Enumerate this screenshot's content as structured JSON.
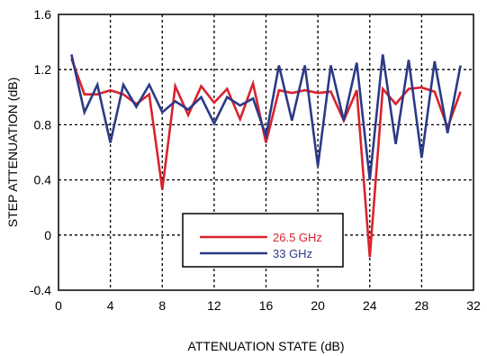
{
  "chart_data": {
    "type": "line",
    "xlabel": "ATTENUATION STATE (dB)",
    "ylabel": "STEP ATTENUATION (dB)",
    "xlim": [
      0,
      32
    ],
    "ylim": [
      -0.4,
      1.6
    ],
    "x_ticks": [
      "0",
      "4",
      "8",
      "12",
      "16",
      "20",
      "24",
      "28",
      "32"
    ],
    "y_ticks": [
      "-0.4",
      "0",
      "0.4",
      "0.8",
      "1.2",
      "1.6"
    ],
    "grid": true,
    "legend_position": "bottom-center",
    "x": [
      1,
      2,
      3,
      4,
      5,
      6,
      7,
      8,
      9,
      10,
      11,
      12,
      13,
      14,
      15,
      16,
      17,
      18,
      19,
      20,
      21,
      22,
      23,
      24,
      25,
      26,
      27,
      28,
      29,
      30,
      31
    ],
    "series": [
      {
        "name": "26.5 GHz",
        "color": "#d9232e",
        "values": [
          1.28,
          1.02,
          1.02,
          1.05,
          1.02,
          0.95,
          1.02,
          0.33,
          1.08,
          0.87,
          1.08,
          0.96,
          1.06,
          0.84,
          1.1,
          0.67,
          1.05,
          1.03,
          1.05,
          1.03,
          1.04,
          0.83,
          1.05,
          -0.16,
          1.06,
          0.95,
          1.06,
          1.07,
          1.04,
          0.78,
          1.04
        ]
      },
      {
        "name": "33 GHz",
        "color": "#2b3a86",
        "values": [
          1.31,
          0.89,
          1.09,
          0.67,
          1.09,
          0.93,
          1.09,
          0.89,
          0.97,
          0.91,
          1.0,
          0.81,
          1.0,
          0.94,
          0.99,
          0.72,
          1.23,
          0.83,
          1.23,
          0.5,
          1.23,
          0.83,
          1.25,
          0.4,
          1.31,
          0.66,
          1.27,
          0.56,
          1.26,
          0.74,
          1.23
        ]
      }
    ]
  }
}
